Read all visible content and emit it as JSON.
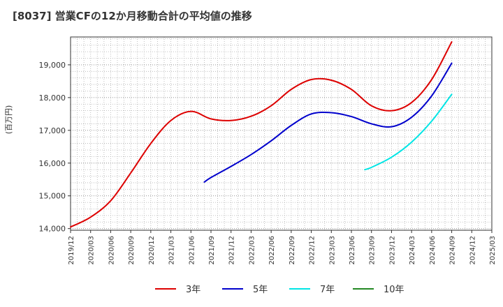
{
  "title": "[8037]  営業CFの12か月移動合計の平均値の推移",
  "chart_data": {
    "type": "line",
    "title": "[8037]  営業CFの12か月移動合計の平均値の推移",
    "ylabel": "(百万円)",
    "xlabel": "",
    "ylim": [
      13950,
      19850
    ],
    "grid": true,
    "legend_position": "bottom",
    "x_ticks": [
      "2019/12",
      "2020/03",
      "2020/06",
      "2020/09",
      "2020/12",
      "2021/03",
      "2021/06",
      "2021/09",
      "2021/12",
      "2022/03",
      "2022/06",
      "2022/09",
      "2022/12",
      "2023/03",
      "2023/06",
      "2023/09",
      "2023/12",
      "2024/03",
      "2024/06",
      "2024/09",
      "2024/12",
      "2025/03"
    ],
    "y_ticks": [
      14000,
      15000,
      16000,
      17000,
      18000,
      19000
    ],
    "series": [
      {
        "name": "3年",
        "color": "#dd0000",
        "x": [
          "2019/12",
          "2020/03",
          "2020/06",
          "2020/09",
          "2020/12",
          "2021/03",
          "2021/06",
          "2021/09",
          "2021/12",
          "2022/03",
          "2022/06",
          "2022/09",
          "2022/12",
          "2023/03",
          "2023/06",
          "2023/09",
          "2023/12",
          "2024/03",
          "2024/06",
          "2024/09"
        ],
        "values": [
          14050,
          14350,
          14850,
          15700,
          16600,
          17300,
          17580,
          17350,
          17300,
          17430,
          17750,
          18250,
          18550,
          18530,
          18250,
          17750,
          17600,
          17850,
          18550,
          19700
        ]
      },
      {
        "name": "5年",
        "color": "#0000cc",
        "x": [
          "2021/08",
          "2021/09",
          "2021/12",
          "2022/03",
          "2022/06",
          "2022/09",
          "2022/12",
          "2023/03",
          "2023/06",
          "2023/09",
          "2023/12",
          "2024/03",
          "2024/06",
          "2024/09"
        ],
        "values": [
          15420,
          15560,
          15900,
          16260,
          16680,
          17150,
          17500,
          17540,
          17420,
          17200,
          17110,
          17400,
          18050,
          19050
        ]
      },
      {
        "name": "7年",
        "color": "#00e5e5",
        "x": [
          "2023/08",
          "2023/09",
          "2023/12",
          "2024/03",
          "2024/06",
          "2024/09"
        ],
        "values": [
          15800,
          15870,
          16180,
          16640,
          17280,
          18100
        ]
      },
      {
        "name": "10年",
        "color": "#228822",
        "x": [],
        "values": []
      }
    ]
  }
}
